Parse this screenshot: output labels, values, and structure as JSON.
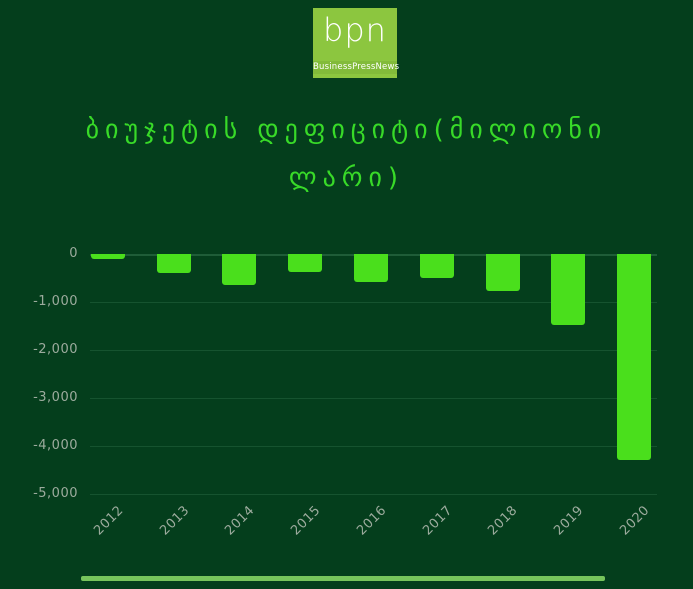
{
  "logo": {
    "text": "bpn",
    "subtext": "BusinessPressNews",
    "bg_color": "#8CC63F",
    "band_color": "#82BB3A"
  },
  "title": {
    "line1": "ბიუჯეტის დეფიციტი(მილიონი",
    "line2": "ლარი)"
  },
  "chart_data": {
    "type": "bar",
    "title": "ბიუჯეტის დეფიციტი(მილიონი ლარი)",
    "categories": [
      "2012",
      "2013",
      "2014",
      "2015",
      "2016",
      "2017",
      "2018",
      "2019",
      "2020"
    ],
    "values": [
      -100,
      -400,
      -650,
      -380,
      -580,
      -510,
      -770,
      -1470,
      -4300
    ],
    "xlabel": "",
    "ylabel": "",
    "ylim": [
      -5000,
      0
    ],
    "y_ticks": [
      "0",
      "-1,000",
      "-2,000",
      "-3,000",
      "-4,000",
      "-5,000"
    ],
    "y_tick_values": [
      0,
      -1000,
      -2000,
      -3000,
      -4000,
      -5000
    ],
    "grid": true,
    "legend": "none",
    "bar_color": "#4ADF1C",
    "title_color": "#38DA28",
    "background_color": "#043E1C",
    "axis_label_color": "#9CAB9D",
    "gridline_color": "#16532F"
  },
  "footer": {
    "underline_color": "#77C55C"
  }
}
